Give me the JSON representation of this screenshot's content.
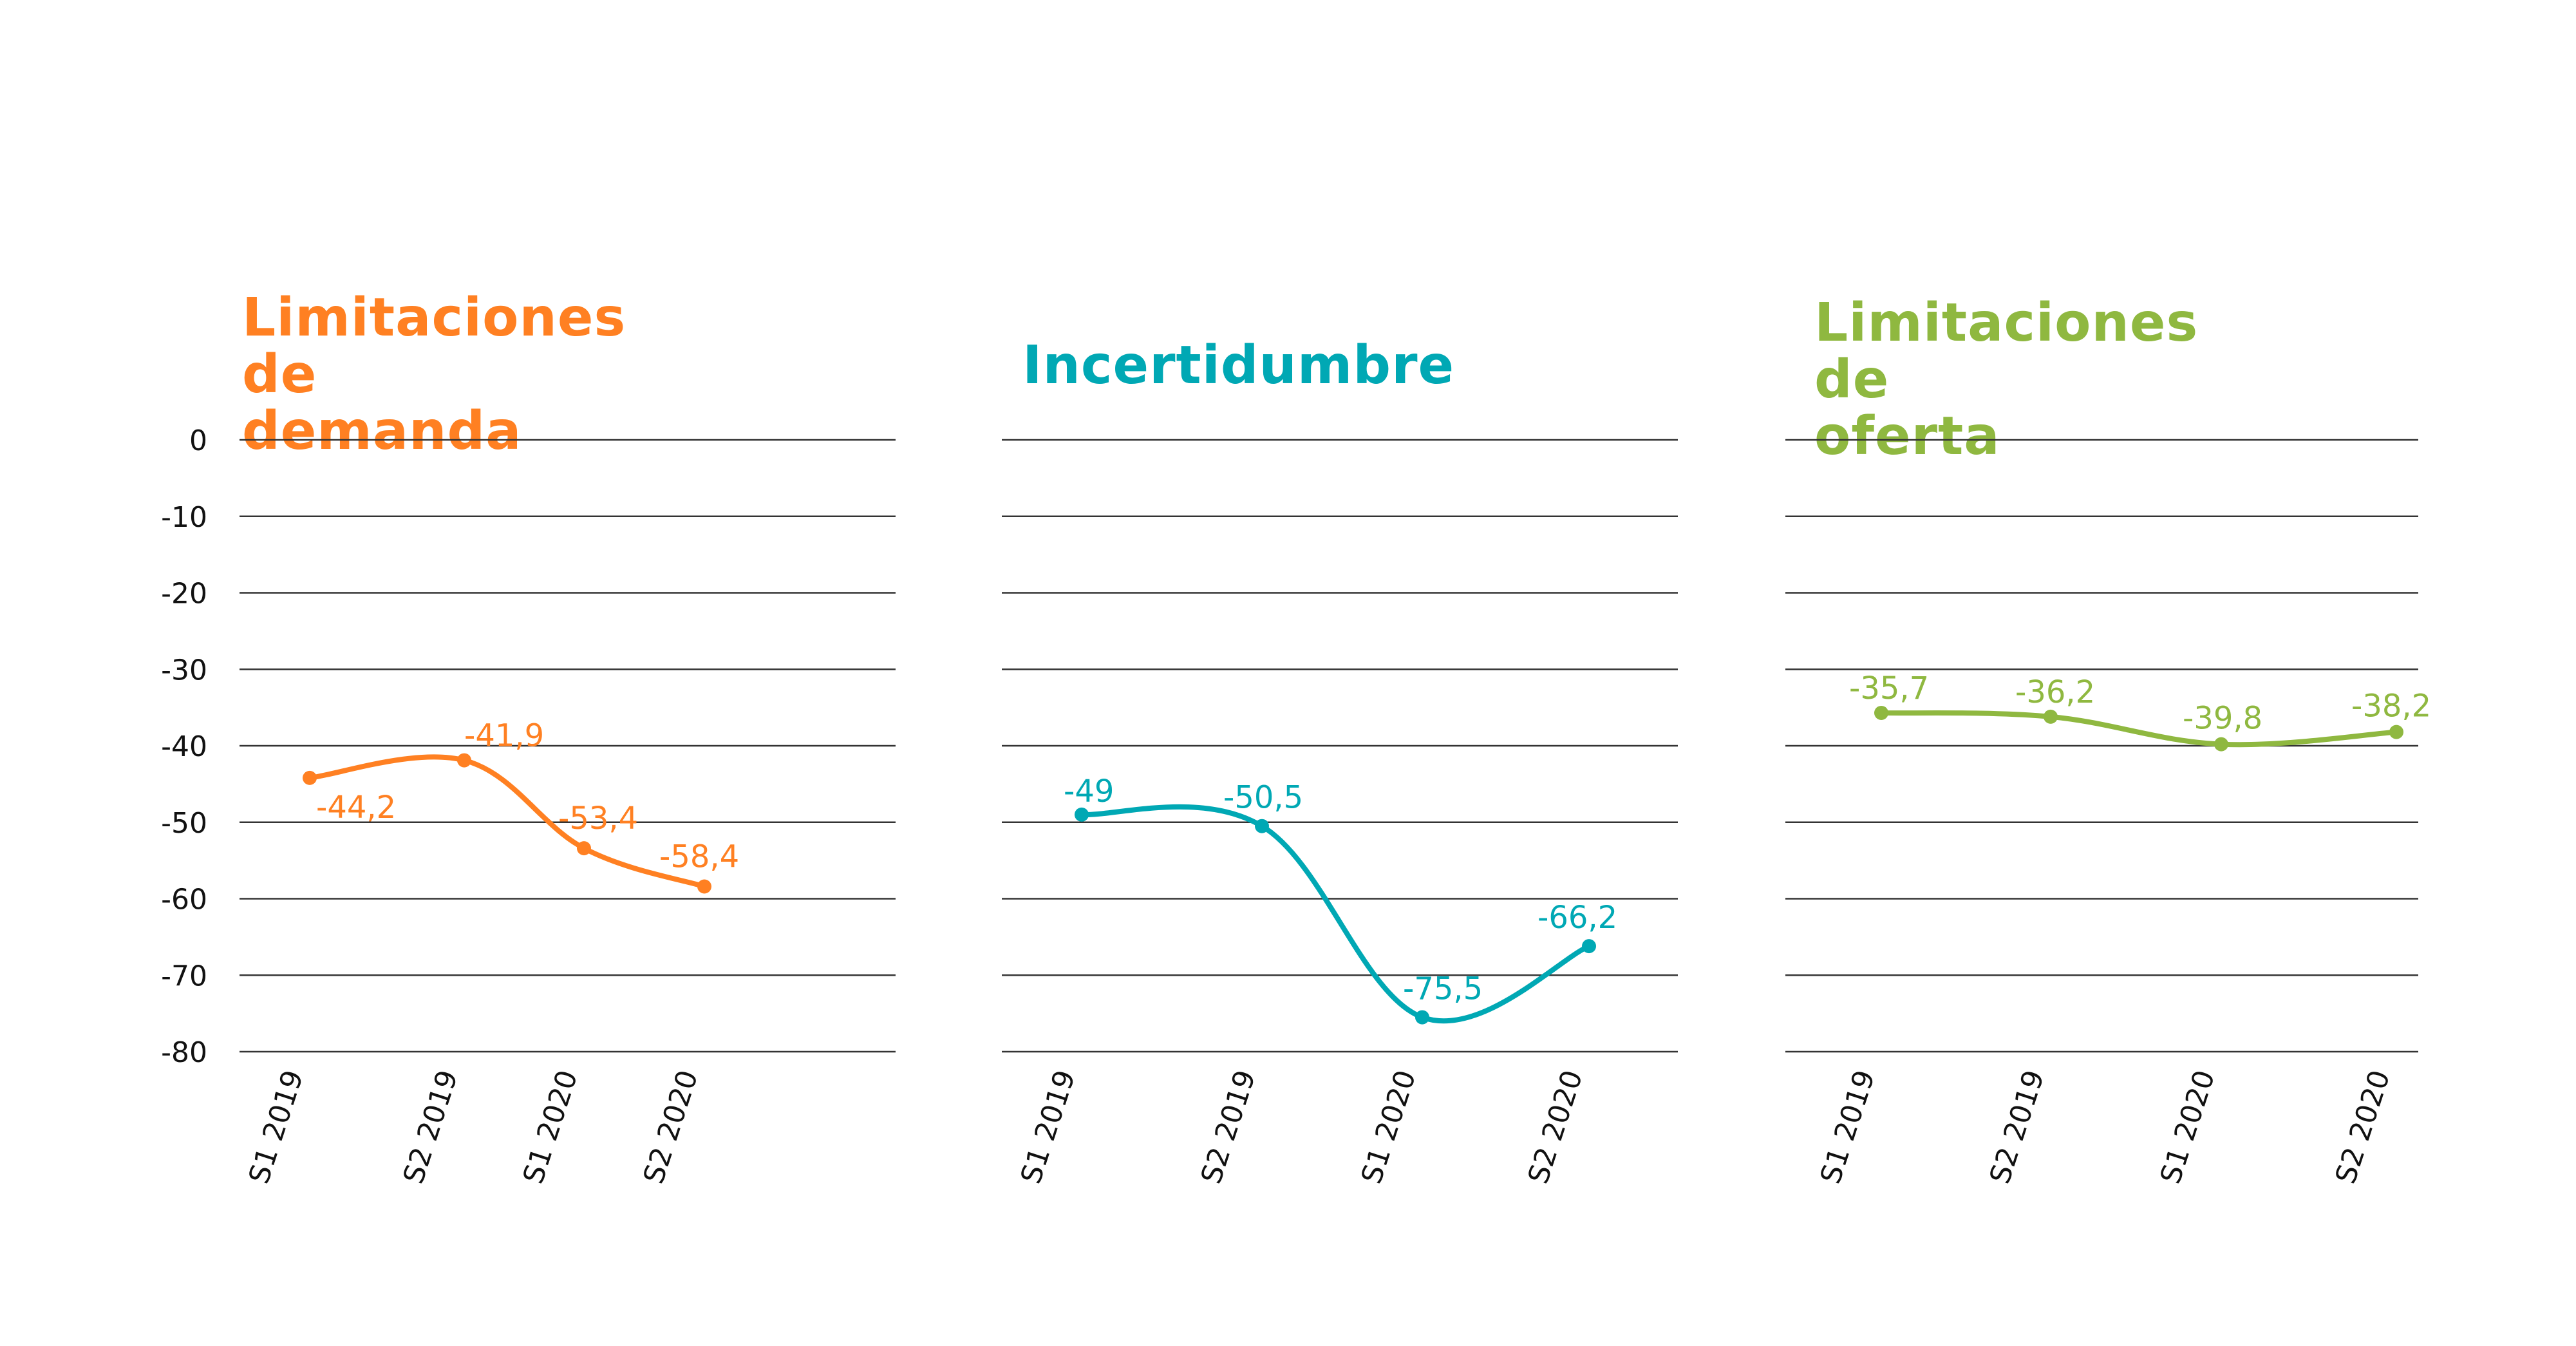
{
  "chart_data": [
    {
      "type": "line",
      "title": "Limitaciones de demanda",
      "color": "#FF8022",
      "categories": [
        "S1 2019",
        "S2 2019",
        "S1 2020",
        "S2 2020"
      ],
      "values": [
        -44.2,
        -41.9,
        -53.4,
        -58.4
      ],
      "labels": [
        "-44,2",
        "-41,9",
        "-53,4",
        "-58,4"
      ],
      "ylim": [
        -80,
        0
      ],
      "yticks": [
        0,
        -10,
        -20,
        -30,
        -40,
        -50,
        -60,
        -70,
        -80
      ],
      "grid": true,
      "xlabel": "",
      "ylabel": ""
    },
    {
      "type": "line",
      "title": "Incertidumbre",
      "color": "#00A8B4",
      "categories": [
        "S1 2019",
        "S2 2019",
        "S1 2020",
        "S2 2020"
      ],
      "values": [
        -49,
        -50.5,
        -75.5,
        -66.2
      ],
      "labels": [
        "-49",
        "-50,5",
        "-75,5",
        "-66,2"
      ],
      "ylim": [
        -80,
        0
      ],
      "grid": true,
      "xlabel": "",
      "ylabel": ""
    },
    {
      "type": "line",
      "title": "Limitaciones de oferta",
      "color": "#8FB840",
      "categories": [
        "S1 2019",
        "S2 2019",
        "S1 2020",
        "S2 2020"
      ],
      "values": [
        -35.7,
        -36.2,
        -39.8,
        -38.2
      ],
      "labels": [
        "-35,7",
        "-36,2",
        "-39,8",
        "-38,2"
      ],
      "ylim": [
        -80,
        0
      ],
      "grid": true,
      "xlabel": "",
      "ylabel": ""
    }
  ],
  "panels": [
    {
      "title": "Limitaciones de\ndemanda"
    },
    {
      "title": "Incertidumbre"
    },
    {
      "title": "Limitaciones de\noferta"
    }
  ],
  "yaxis": {
    "ticks": [
      "0",
      "-10",
      "-20",
      "-30",
      "-40",
      "-50",
      "-60",
      "-70",
      "-80"
    ]
  }
}
